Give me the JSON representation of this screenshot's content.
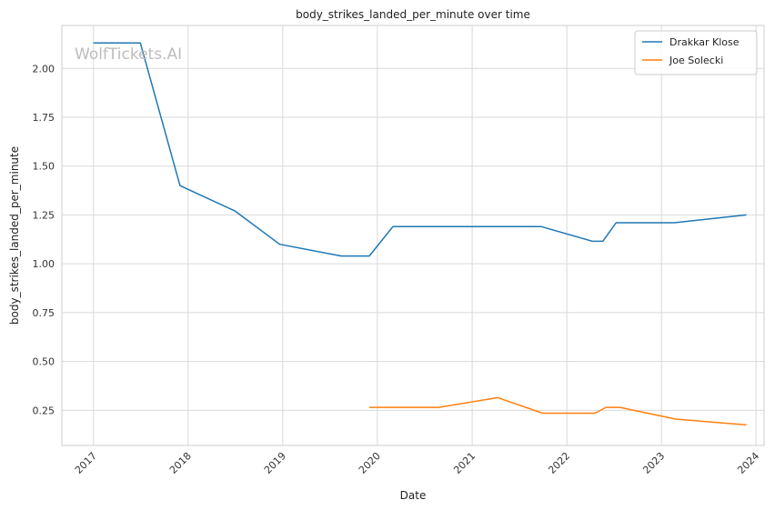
{
  "chart_data": {
    "type": "line",
    "title": "body_strikes_landed_per_minute over time",
    "xlabel": "Date",
    "ylabel": "body_strikes_landed_per_minute",
    "watermark": "WolfTickets.AI",
    "x_ticks": [
      "2017",
      "2018",
      "2019",
      "2020",
      "2021",
      "2022",
      "2023",
      "2024"
    ],
    "y_ticks": [
      "0.25",
      "0.50",
      "0.75",
      "1.00",
      "1.25",
      "1.50",
      "1.75",
      "2.00"
    ],
    "xlim": [
      "2016-09-01",
      "2024-02-01"
    ],
    "ylim": [
      0.07,
      2.22
    ],
    "grid": true,
    "legend_position": "top-right",
    "series": [
      {
        "name": "Drakkar Klose",
        "color": "#1f77b4",
        "points": [
          {
            "x": "2017-01-01",
            "y": 2.13
          },
          {
            "x": "2017-07-01",
            "y": 2.13
          },
          {
            "x": "2017-12-01",
            "y": 1.4
          },
          {
            "x": "2018-07-01",
            "y": 1.27
          },
          {
            "x": "2018-12-20",
            "y": 1.1
          },
          {
            "x": "2019-08-15",
            "y": 1.04
          },
          {
            "x": "2019-12-01",
            "y": 1.04
          },
          {
            "x": "2020-03-01",
            "y": 1.19
          },
          {
            "x": "2021-09-25",
            "y": 1.19
          },
          {
            "x": "2022-04-10",
            "y": 1.115
          },
          {
            "x": "2022-05-20",
            "y": 1.115
          },
          {
            "x": "2022-07-10",
            "y": 1.21
          },
          {
            "x": "2023-02-20",
            "y": 1.21
          },
          {
            "x": "2023-11-25",
            "y": 1.25
          }
        ]
      },
      {
        "name": "Joe Solecki",
        "color": "#ff7f0e",
        "points": [
          {
            "x": "2019-12-01",
            "y": 0.265
          },
          {
            "x": "2020-08-25",
            "y": 0.265
          },
          {
            "x": "2021-04-10",
            "y": 0.315
          },
          {
            "x": "2021-09-30",
            "y": 0.235
          },
          {
            "x": "2022-04-20",
            "y": 0.235
          },
          {
            "x": "2022-06-01",
            "y": 0.265
          },
          {
            "x": "2022-07-25",
            "y": 0.265
          },
          {
            "x": "2023-02-25",
            "y": 0.205
          },
          {
            "x": "2023-11-25",
            "y": 0.175
          }
        ]
      }
    ]
  }
}
